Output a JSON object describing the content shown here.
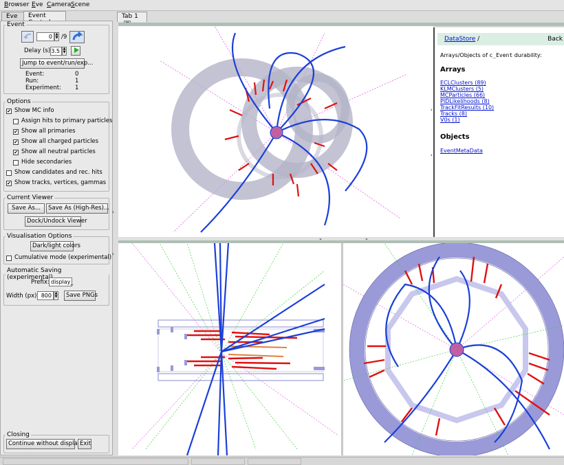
{
  "menubar": {
    "items": [
      "Browser",
      "Eve",
      "Camera",
      "Scene"
    ]
  },
  "left_tabs": [
    "Eve",
    "Event Control"
  ],
  "main_tab": {
    "label": "Tab 1",
    "close_icon": "close-icon"
  },
  "event_group": {
    "title": "Event",
    "event_index": "0",
    "event_count": "/9",
    "delay_label": "Delay (s):",
    "delay_value": "3.5",
    "jump_button": "Jump to event/run/exp...",
    "info": [
      {
        "label": "Event:",
        "value": "0"
      },
      {
        "label": "Run:",
        "value": "1"
      },
      {
        "label": "Experiment:",
        "value": "1"
      }
    ]
  },
  "options_group": {
    "title": "Options",
    "items": [
      {
        "label": "Show MC info",
        "checked": true
      },
      {
        "label": "Assign hits to primary particles",
        "checked": false
      },
      {
        "label": "Show all primaries",
        "checked": true
      },
      {
        "label": "Show all charged particles",
        "checked": true
      },
      {
        "label": "Show all neutral particles",
        "checked": true
      },
      {
        "label": "Hide secondaries",
        "checked": false
      },
      {
        "label": "Show candidates and rec. hits",
        "checked": false
      },
      {
        "label": "Show tracks, vertices, gammas",
        "checked": true
      }
    ]
  },
  "viewer_group": {
    "title": "Current Viewer",
    "save_as": "Save As...",
    "save_as_hires": "Save As (High-Res)...",
    "dock": "Dock/Undock Viewer"
  },
  "vis_group": {
    "title": "Visualisation Options",
    "dark_light": "Dark/light colors",
    "cumulative": "Cumulative mode (experimental)"
  },
  "autosave_group": {
    "title": "Automatic Saving (experimental)",
    "prefix_label": "Prefix:",
    "prefix_value": "display_",
    "width_label": "Width (px):",
    "width_value": "800",
    "save_pngs": "Save PNGs"
  },
  "closing_group": {
    "title": "Closing",
    "continue": "Continue without display",
    "exit": "Exit"
  },
  "datastore": {
    "header": "DataStore",
    "slash": "/",
    "back": "Back",
    "intro_pre": "Arrays/Objects of ",
    "intro_code": "c_Event",
    "intro_post": " durability:",
    "arrays_title": "Arrays",
    "arrays": [
      "ECLClusters (89)",
      "KLMClusters (5)",
      "MCParticles (66)",
      "PIDLikelihoods (8)",
      "TrackFitResults (10)",
      "Tracks (8)",
      "V0s (1)"
    ],
    "objects_title": "Objects",
    "objects": [
      "EventMetaData"
    ]
  },
  "colors": {
    "track": "#1a3fd8",
    "cluster": "#e01010",
    "mc_line": "#e060e0",
    "neutral_line": "#40d040",
    "ecl_ring": "#9a9ad8",
    "cdc_gray": "#b4b4c8"
  }
}
